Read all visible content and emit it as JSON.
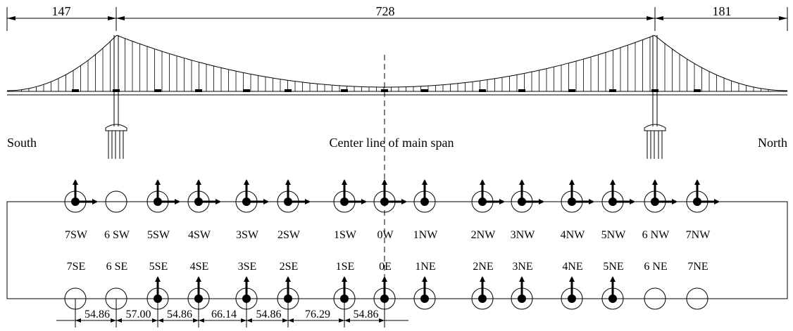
{
  "span_dimensions": {
    "left": "147",
    "main": "728",
    "right": "181"
  },
  "labels": {
    "south": "South",
    "north": "North",
    "center_line": "Center line of main span"
  },
  "sensor_columns": [
    {
      "west": "7SW",
      "east": "7SE",
      "west_type": "biaxial",
      "east_type": "none"
    },
    {
      "west": "6 SW",
      "east": "6 SE",
      "west_type": "none",
      "east_type": "none"
    },
    {
      "west": "5SW",
      "east": "5SE",
      "west_type": "biaxial",
      "east_type": "uniaxial"
    },
    {
      "west": "4SW",
      "east": "4SE",
      "west_type": "biaxial",
      "east_type": "uniaxial"
    },
    {
      "west": "3SW",
      "east": "3SE",
      "west_type": "biaxial",
      "east_type": "uniaxial"
    },
    {
      "west": "2SW",
      "east": "2SE",
      "west_type": "biaxial",
      "east_type": "uniaxial"
    },
    {
      "west": "1SW",
      "east": "1SE",
      "west_type": "biaxial",
      "east_type": "uniaxial"
    },
    {
      "west": "0W",
      "east": "0E",
      "west_type": "biaxial",
      "east_type": "uniaxial"
    },
    {
      "west": "1NW",
      "east": "1NE",
      "west_type": "uniaxial",
      "east_type": "uniaxial"
    },
    {
      "west": "2NW",
      "east": "2NE",
      "west_type": "biaxial",
      "east_type": "uniaxial"
    },
    {
      "west": "3NW",
      "east": "3NE",
      "west_type": "biaxial",
      "east_type": "uniaxial"
    },
    {
      "west": "4NW",
      "east": "4NE",
      "west_type": "biaxial",
      "east_type": "uniaxial"
    },
    {
      "west": "5NW",
      "east": "5NE",
      "west_type": "biaxial",
      "east_type": "uniaxial"
    },
    {
      "west": "6 NW",
      "east": "6 NE",
      "west_type": "biaxial",
      "east_type": "none"
    },
    {
      "west": "7NW",
      "east": "7NE",
      "west_type": "biaxial",
      "east_type": "none"
    }
  ],
  "spacings": [
    "54.86",
    "57.00",
    "54.86",
    "66.14",
    "54.86",
    "76.29",
    "54.86"
  ]
}
